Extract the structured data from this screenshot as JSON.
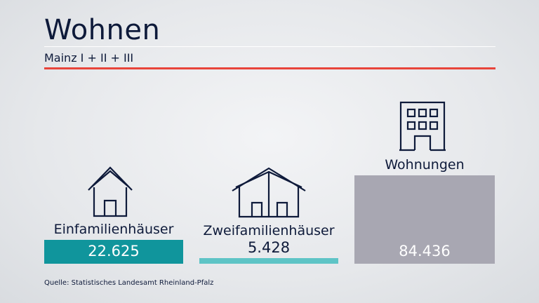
{
  "header": {
    "title": "Wohnen",
    "subtitle": "Mainz I + II + III"
  },
  "footer": {
    "source": "Quelle: Statistisches Landesamt Rheinland-Pfalz"
  },
  "colors": {
    "accent": "#e8443a",
    "navy": "#0e1a3a",
    "teal_dark": "#10959c",
    "teal_light": "#5ec4c6",
    "gray": "#a8a7b2"
  },
  "chart_data": {
    "type": "bar",
    "categories": [
      "Einfamilienhäuser",
      "Zweifamilienhäuser",
      "Wohnungen"
    ],
    "values": [
      22625,
      5428,
      84436
    ],
    "value_labels": [
      "22.625",
      "5.428",
      "84.436"
    ],
    "icons": [
      "single-family-house-icon",
      "two-family-house-icon",
      "apartment-building-icon"
    ],
    "colors": [
      "#10959c",
      "#5ec4c6",
      "#a8a7b2"
    ]
  }
}
